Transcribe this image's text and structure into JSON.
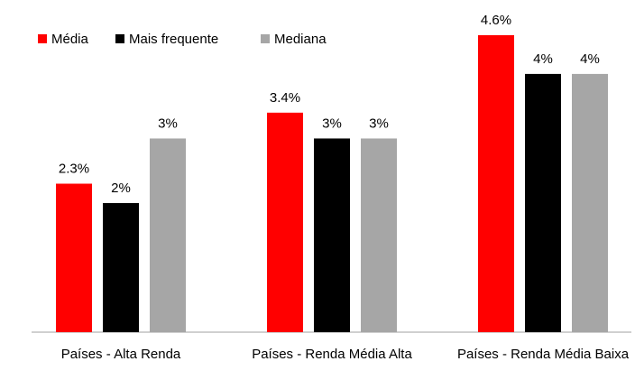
{
  "chart_data": {
    "type": "bar",
    "categories": [
      "Países - Alta Renda",
      "Países - Renda Média Alta",
      "Países - Renda Média Baixa"
    ],
    "series": [
      {
        "name": "Média",
        "color": "#ff0000",
        "values": [
          2.3,
          3.4,
          4.6
        ],
        "value_labels": [
          "2.3%",
          "3.4%",
          "4.6%"
        ]
      },
      {
        "name": "Mais frequente",
        "color": "#000000",
        "values": [
          2,
          3,
          4
        ],
        "value_labels": [
          "2%",
          "3%",
          "4%"
        ]
      },
      {
        "name": "Mediana",
        "color": "#a6a6a6",
        "values": [
          3,
          3,
          4
        ],
        "value_labels": [
          "3%",
          "3%",
          "4%"
        ]
      }
    ],
    "legend": "top-left"
  }
}
